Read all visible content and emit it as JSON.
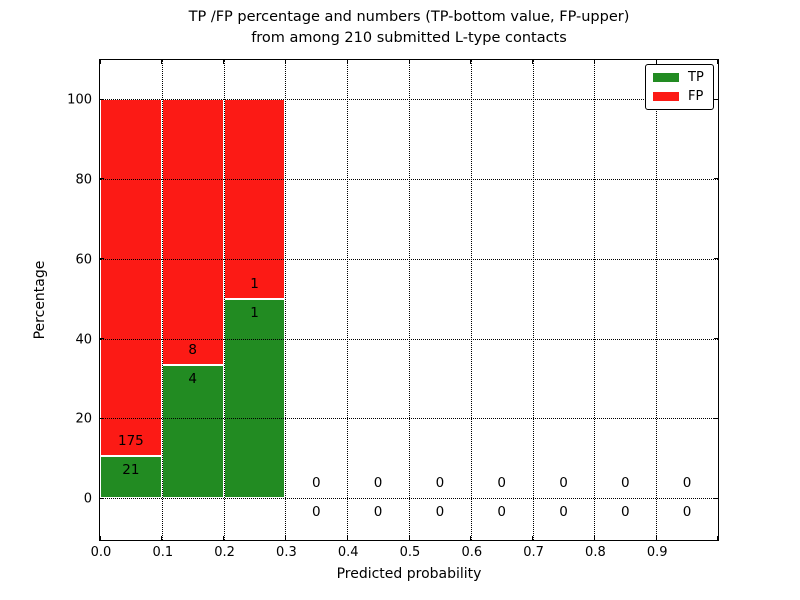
{
  "title": {
    "line1": "TP /FP percentage and numbers (TP-bottom value, FP-upper)",
    "line2": "from among 210 submitted L-type contacts"
  },
  "axes": {
    "xlabel": "Predicted probability",
    "ylabel": "Percentage",
    "x_ticks": [
      "0.0",
      "0.1",
      "0.2",
      "0.3",
      "0.4",
      "0.5",
      "0.6",
      "0.7",
      "0.8",
      "0.9"
    ],
    "y_ticks": [
      "0",
      "20",
      "40",
      "60",
      "80",
      "100"
    ],
    "xlim": [
      0.0,
      1.0
    ],
    "ylim": [
      -10.5,
      110
    ],
    "grid_style": "dotted"
  },
  "legend": {
    "position": "upper-right",
    "items": [
      {
        "label": "TP",
        "color": "#228b22"
      },
      {
        "label": "FP",
        "color": "#fc1a15"
      }
    ]
  },
  "chart_data": {
    "type": "bar",
    "stacked": true,
    "title": "TP /FP percentage and numbers (TP-bottom value, FP-upper) from among 210 submitted L-type contacts",
    "xlabel": "Predicted probability",
    "ylabel": "Percentage",
    "xlim": [
      0.0,
      1.0
    ],
    "ylim": [
      -10.5,
      110
    ],
    "bin_width": 0.1,
    "bin_starts": [
      0.0,
      0.1,
      0.2,
      0.3,
      0.4,
      0.5,
      0.6,
      0.7,
      0.8,
      0.9
    ],
    "series": [
      {
        "name": "TP",
        "color": "#228b22",
        "counts": [
          21,
          4,
          1,
          0,
          0,
          0,
          0,
          0,
          0,
          0
        ],
        "pct": [
          10.714,
          33.333,
          50.0,
          0,
          0,
          0,
          0,
          0,
          0,
          0
        ]
      },
      {
        "name": "FP",
        "color": "#fc1a15",
        "counts": [
          175,
          8,
          1,
          0,
          0,
          0,
          0,
          0,
          0,
          0
        ],
        "pct": [
          89.286,
          66.667,
          50.0,
          0,
          0,
          0,
          0,
          0,
          0,
          0
        ]
      }
    ],
    "total_submitted": 210
  },
  "colors": {
    "tp": "#228b22",
    "fp": "#fc1a15",
    "bar_edge": "#ffffff",
    "grid": "#000000",
    "axis": "#000000",
    "text": "#000000",
    "background": "#ffffff"
  }
}
